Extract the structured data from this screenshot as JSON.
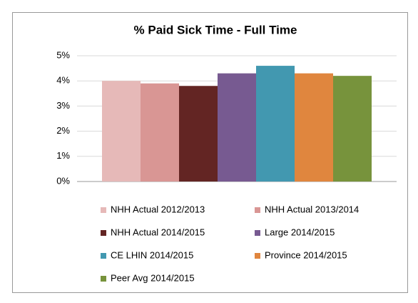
{
  "chart_data": {
    "type": "bar",
    "title": "% Paid Sick Time - Full Time",
    "categories": [
      null
    ],
    "series": [
      {
        "name": "NHH Actual 2012/2013",
        "color": "#e6b9b8",
        "values": [
          4.0
        ]
      },
      {
        "name": "NHH Actual 2013/2014",
        "color": "#d99694",
        "values": [
          3.9
        ]
      },
      {
        "name": "NHH Actual 2014/2015",
        "color": "#632523",
        "values": [
          3.8
        ]
      },
      {
        "name": "Large 2014/2015",
        "color": "#775a91",
        "values": [
          4.3
        ]
      },
      {
        "name": "CE LHIN 2014/2015",
        "color": "#4298b0",
        "values": [
          4.6
        ]
      },
      {
        "name": "Province 2014/2015",
        "color": "#e0863e",
        "values": [
          4.3
        ]
      },
      {
        "name": "Peer Avg 2014/2015",
        "color": "#77933c",
        "values": [
          4.2
        ]
      }
    ],
    "ylim": [
      0,
      5
    ],
    "yticks": [
      {
        "value": 0,
        "label": "0%"
      },
      {
        "value": 1,
        "label": "1%"
      },
      {
        "value": 2,
        "label": "2%"
      },
      {
        "value": 3,
        "label": "3%"
      },
      {
        "value": 4,
        "label": "4%"
      },
      {
        "value": 5,
        "label": "5%"
      }
    ],
    "grid": true,
    "legend": "bottom"
  }
}
